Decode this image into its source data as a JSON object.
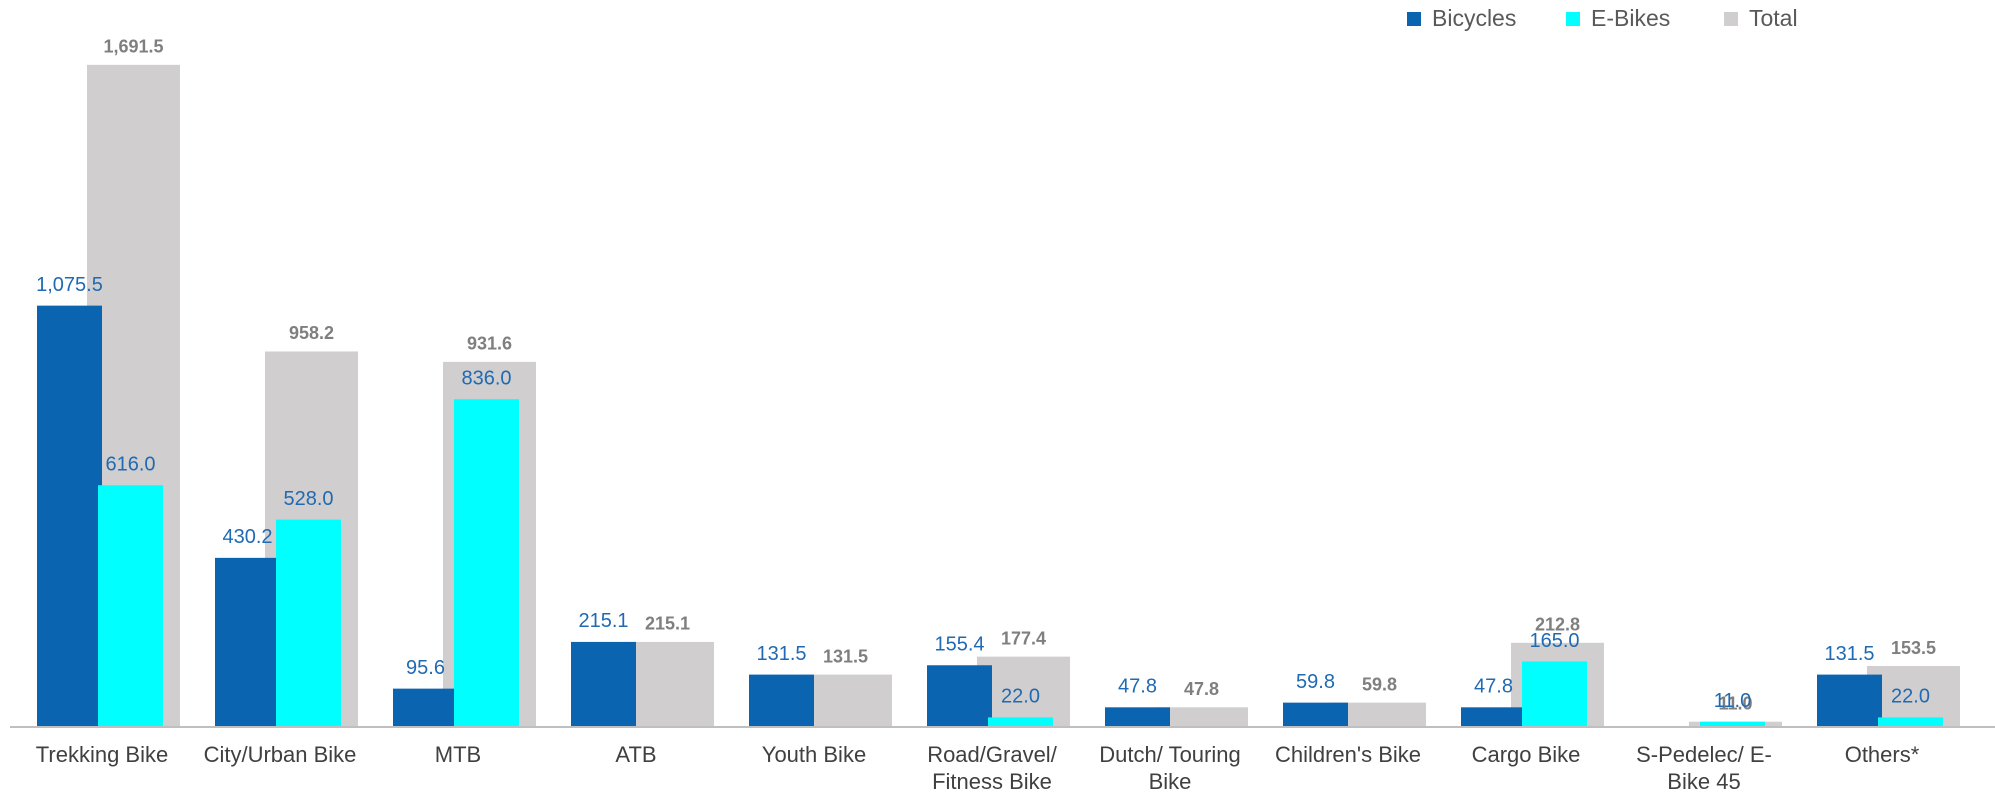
{
  "chart_data": {
    "type": "bar",
    "categories": [
      "Trekking Bike",
      "City/Urban Bike",
      "MTB",
      "ATB",
      "Youth Bike",
      "Road/Gravel/ Fitness Bike",
      "Dutch/ Touring Bike",
      "Children's Bike",
      "Cargo Bike",
      "S-Pedelec/ E-Bike 45",
      "Others*"
    ],
    "series": [
      {
        "name": "Bicycles",
        "color": "#0a64b0",
        "values": [
          1075.5,
          430.2,
          95.6,
          215.1,
          131.5,
          155.4,
          47.8,
          59.8,
          47.8,
          null,
          131.5
        ],
        "value_labels": [
          "1,075.5",
          "430.2",
          "95.6",
          "215.1",
          "131.5",
          "155.4",
          "47.8",
          "59.8",
          "47.8",
          null,
          "131.5"
        ]
      },
      {
        "name": "E-Bikes",
        "color": "#00ffff",
        "values": [
          616.0,
          528.0,
          836.0,
          null,
          null,
          22.0,
          null,
          null,
          165.0,
          11.0,
          22.0
        ],
        "value_labels": [
          "616.0",
          "528.0",
          "836.0",
          null,
          null,
          "22.0",
          null,
          null,
          "165.0",
          "11.0",
          "22.0"
        ]
      },
      {
        "name": "Total",
        "color": "#d0cece",
        "values": [
          1691.5,
          958.2,
          931.6,
          215.1,
          131.5,
          177.4,
          47.8,
          59.8,
          212.8,
          11.0,
          153.5
        ],
        "value_labels": [
          "1,691.5",
          "958.2",
          "931.6",
          "215.1",
          "131.5",
          "177.4",
          "47.8",
          "59.8",
          "212.8",
          "11.0",
          "153.5"
        ]
      }
    ],
    "ylim": [
      0,
      1750
    ],
    "legend": "top-right"
  }
}
